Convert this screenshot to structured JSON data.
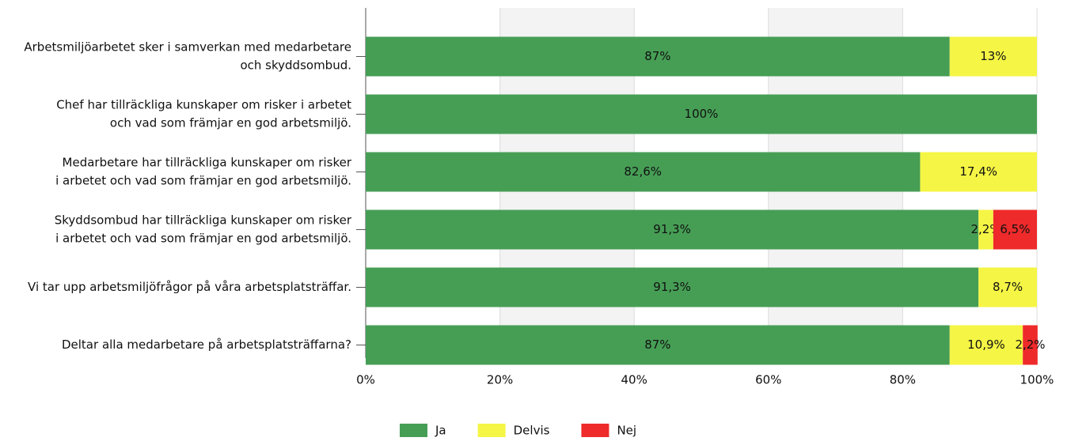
{
  "chart_data": {
    "type": "stacked_barh",
    "categories": [
      [
        "Arbetsmiljöarbetet sker i samverkan med medarbetare",
        "och skyddsombud."
      ],
      [
        "Chef har tillräckliga kunskaper om risker i arbetet",
        "och vad som främjar en god arbetsmiljö."
      ],
      [
        "Medarbetare har tillräckliga kunskaper om risker",
        "i arbetet och vad som främjar en god arbetsmiljö."
      ],
      [
        "Skyddsombud har tillräckliga kunskaper om risker",
        "i arbetet och vad som främjar en god arbetsmiljö."
      ],
      [
        "Vi tar upp arbetsmiljöfrågor på våra arbetsplatsträffar."
      ],
      [
        "Deltar alla medarbetare på arbetsplatsträffarna?"
      ]
    ],
    "series": [
      {
        "name": "Ja",
        "color": "#469e55",
        "values": [
          87,
          100,
          82.6,
          91.3,
          91.3,
          87
        ],
        "value_labels": [
          "87%",
          "100%",
          "82,6%",
          "91,3%",
          "91,3%",
          "87%"
        ]
      },
      {
        "name": "Delvis",
        "color": "#f5f545",
        "values": [
          13,
          0,
          17.4,
          2.2,
          8.7,
          10.9
        ],
        "value_labels": [
          "13%",
          null,
          "17,4%",
          "2,2%",
          "8,7%",
          "10,9%"
        ]
      },
      {
        "name": "Nej",
        "color": "#ee2a2a",
        "values": [
          0,
          0,
          0,
          6.5,
          0,
          2.2
        ],
        "value_labels": [
          null,
          null,
          null,
          "6,5%",
          null,
          "2,2%"
        ]
      }
    ],
    "xlim": [
      0,
      100
    ],
    "xticks": [
      {
        "value": 0,
        "label": "0%"
      },
      {
        "value": 20,
        "label": "20%"
      },
      {
        "value": 40,
        "label": "40%"
      },
      {
        "value": 60,
        "label": "60%"
      },
      {
        "value": 80,
        "label": "80%"
      },
      {
        "value": 100,
        "label": "100%"
      }
    ],
    "legend": "bottom"
  }
}
